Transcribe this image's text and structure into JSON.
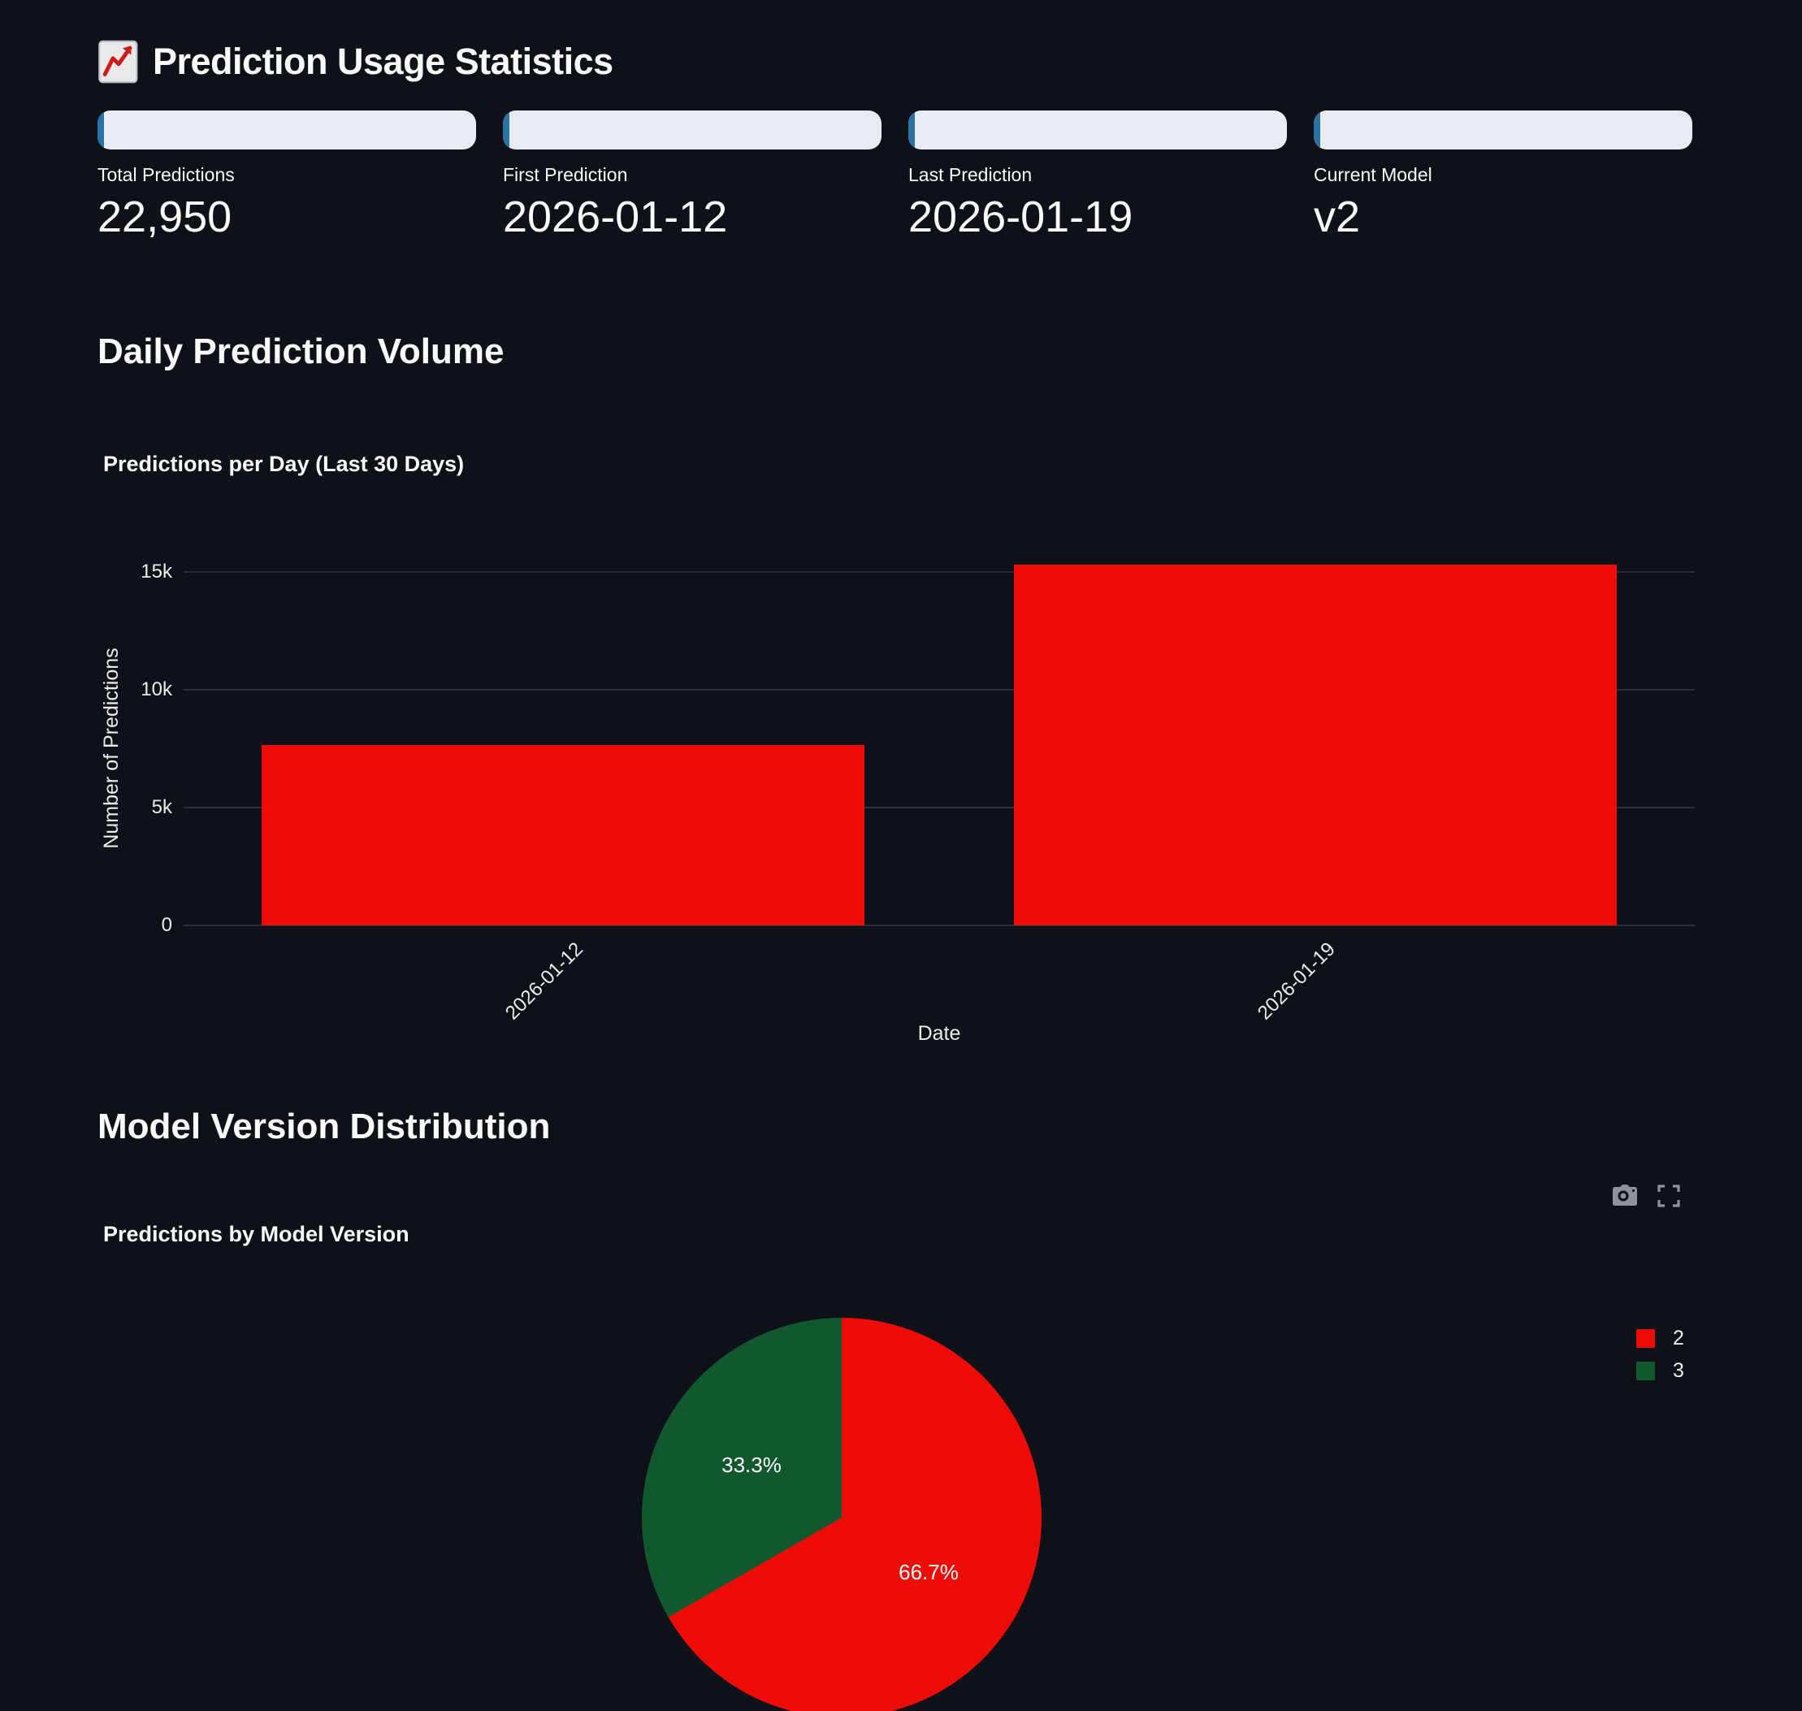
{
  "page": {
    "title": "Prediction Usage Statistics",
    "title_icon": "chart-increasing-emoji"
  },
  "colors": {
    "background": "#0e1117",
    "text": "#fafafa",
    "accent_blue": "#2b72a3",
    "pill_bg": "#e8ebf2",
    "red": "#ee0c08",
    "green": "#12582f",
    "modebar_icon": "#8e939b"
  },
  "metrics": [
    {
      "label": "Total Predictions",
      "value": "22,950"
    },
    {
      "label": "First Prediction",
      "value": "2026-01-12"
    },
    {
      "label": "Last Prediction",
      "value": "2026-01-19"
    },
    {
      "label": "Current Model",
      "value": "v2"
    }
  ],
  "sections": [
    {
      "heading": "Daily Prediction Volume"
    },
    {
      "heading": "Model Version Distribution"
    }
  ],
  "modebar": {
    "icons": [
      "camera-icon",
      "fullscreen-icon"
    ]
  },
  "chart_data": [
    {
      "type": "bar",
      "title": "Predictions per Day (Last 30 Days)",
      "categories": [
        "2026-01-12",
        "2026-01-19"
      ],
      "values": [
        7650,
        15300
      ],
      "xlabel": "Date",
      "ylabel": "Number of Predictions",
      "yticks": [
        "0",
        "5k",
        "10k",
        "15k"
      ],
      "ytick_values": [
        0,
        5000,
        10000,
        15000
      ],
      "ylim": [
        0,
        15000
      ],
      "bar_color": "#ee0c08",
      "grid": true,
      "legend": "none"
    },
    {
      "type": "pie",
      "title": "Predictions by Model Version",
      "labels": [
        "2",
        "3"
      ],
      "percents": [
        66.7,
        33.3
      ],
      "slice_text": [
        "66.7%",
        "33.3%"
      ],
      "colors": [
        "#ee0c08",
        "#12582f"
      ],
      "legend_position": "right",
      "start_angle": "top",
      "direction": "clockwise"
    }
  ]
}
